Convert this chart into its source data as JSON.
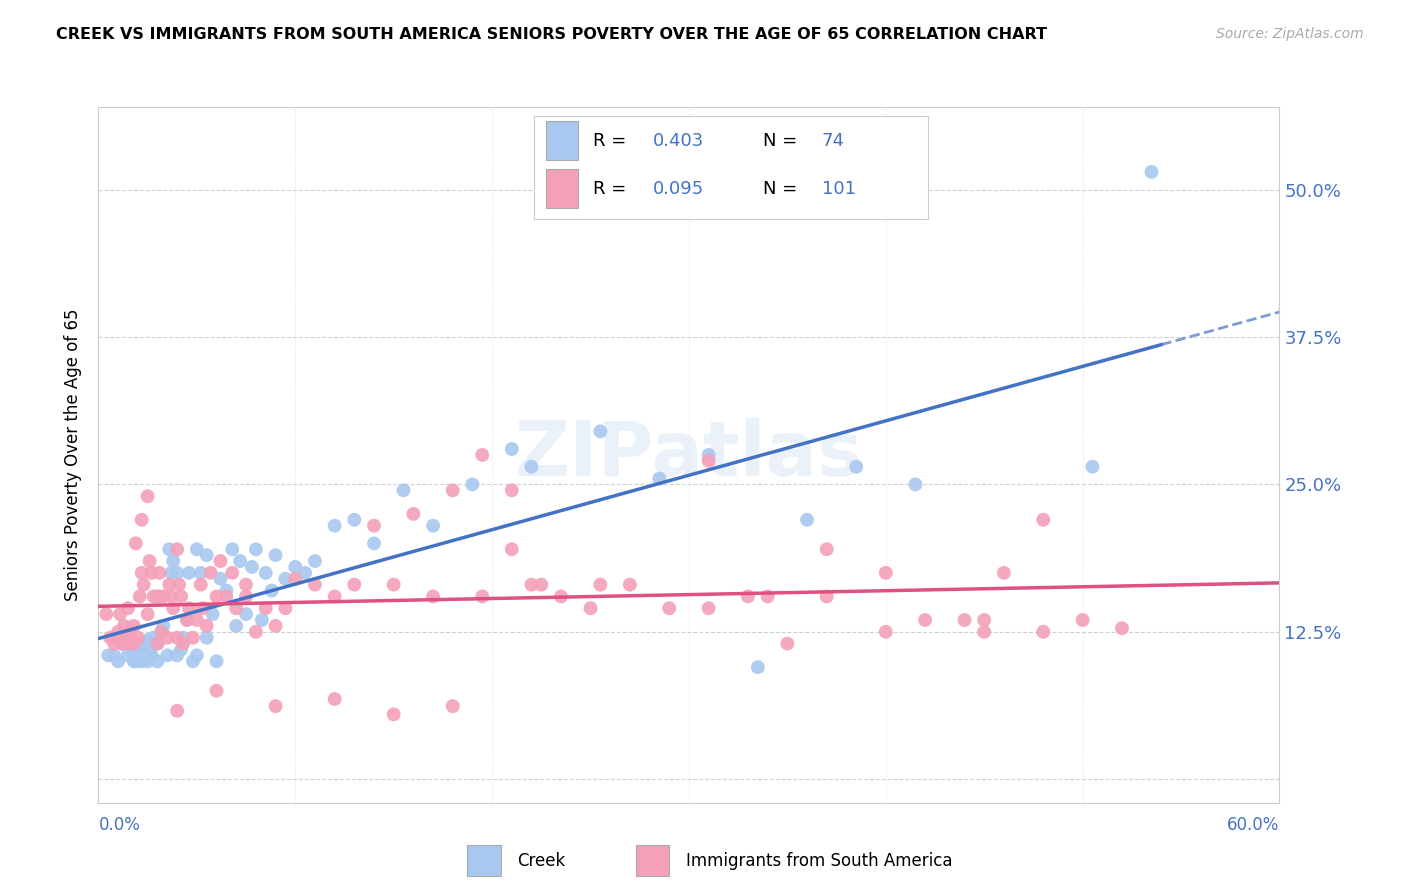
{
  "title": "CREEK VS IMMIGRANTS FROM SOUTH AMERICA SENIORS POVERTY OVER THE AGE OF 65 CORRELATION CHART",
  "source": "Source: ZipAtlas.com",
  "ylabel": "Seniors Poverty Over the Age of 65",
  "xlim": [
    0.0,
    0.6
  ],
  "ylim": [
    -0.02,
    0.57
  ],
  "creek_R": 0.403,
  "creek_N": 74,
  "immigrants_R": 0.095,
  "immigrants_N": 101,
  "creek_color": "#a8c8f0",
  "immigrants_color": "#f4a0b8",
  "creek_line_color": "#4472c4",
  "immigrants_line_color": "#e05080",
  "background_color": "#ffffff",
  "grid_color": "#cccccc",
  "creek_x": [
    0.005,
    0.008,
    0.01,
    0.012,
    0.015,
    0.015,
    0.018,
    0.018,
    0.019,
    0.02,
    0.022,
    0.022,
    0.023,
    0.025,
    0.025,
    0.026,
    0.027,
    0.028,
    0.03,
    0.03,
    0.031,
    0.032,
    0.033,
    0.035,
    0.036,
    0.037,
    0.038,
    0.04,
    0.04,
    0.042,
    0.043,
    0.045,
    0.046,
    0.048,
    0.05,
    0.05,
    0.052,
    0.055,
    0.055,
    0.058,
    0.06,
    0.062,
    0.065,
    0.068,
    0.07,
    0.072,
    0.075,
    0.078,
    0.08,
    0.083,
    0.085,
    0.088,
    0.09,
    0.095,
    0.1,
    0.105,
    0.11,
    0.12,
    0.13,
    0.14,
    0.155,
    0.17,
    0.19,
    0.21,
    0.22,
    0.255,
    0.285,
    0.31,
    0.335,
    0.36,
    0.385,
    0.415,
    0.505,
    0.535
  ],
  "creek_y": [
    0.105,
    0.105,
    0.1,
    0.115,
    0.105,
    0.12,
    0.1,
    0.11,
    0.1,
    0.108,
    0.1,
    0.112,
    0.115,
    0.1,
    0.118,
    0.11,
    0.105,
    0.12,
    0.1,
    0.115,
    0.155,
    0.125,
    0.13,
    0.105,
    0.195,
    0.175,
    0.185,
    0.105,
    0.175,
    0.11,
    0.12,
    0.135,
    0.175,
    0.1,
    0.105,
    0.195,
    0.175,
    0.12,
    0.19,
    0.14,
    0.1,
    0.17,
    0.16,
    0.195,
    0.13,
    0.185,
    0.14,
    0.18,
    0.195,
    0.135,
    0.175,
    0.16,
    0.19,
    0.17,
    0.18,
    0.175,
    0.185,
    0.215,
    0.22,
    0.2,
    0.245,
    0.215,
    0.25,
    0.28,
    0.265,
    0.295,
    0.255,
    0.275,
    0.095,
    0.22,
    0.265,
    0.25,
    0.265,
    0.515
  ],
  "immigrants_x": [
    0.004,
    0.006,
    0.008,
    0.01,
    0.011,
    0.012,
    0.013,
    0.014,
    0.015,
    0.015,
    0.016,
    0.018,
    0.018,
    0.019,
    0.02,
    0.021,
    0.022,
    0.022,
    0.023,
    0.025,
    0.025,
    0.026,
    0.027,
    0.028,
    0.03,
    0.03,
    0.031,
    0.032,
    0.033,
    0.035,
    0.036,
    0.037,
    0.038,
    0.04,
    0.04,
    0.041,
    0.042,
    0.043,
    0.045,
    0.046,
    0.048,
    0.05,
    0.052,
    0.053,
    0.055,
    0.057,
    0.06,
    0.062,
    0.065,
    0.068,
    0.07,
    0.075,
    0.08,
    0.085,
    0.09,
    0.095,
    0.1,
    0.11,
    0.12,
    0.13,
    0.14,
    0.15,
    0.16,
    0.17,
    0.18,
    0.195,
    0.21,
    0.22,
    0.235,
    0.255,
    0.27,
    0.29,
    0.31,
    0.33,
    0.35,
    0.37,
    0.4,
    0.42,
    0.45,
    0.48,
    0.31,
    0.34,
    0.37,
    0.4,
    0.195,
    0.21,
    0.225,
    0.25,
    0.44,
    0.46,
    0.04,
    0.06,
    0.09,
    0.12,
    0.15,
    0.18,
    0.45,
    0.48,
    0.5,
    0.52,
    0.075
  ],
  "immigrants_y": [
    0.14,
    0.12,
    0.115,
    0.125,
    0.14,
    0.115,
    0.13,
    0.118,
    0.115,
    0.145,
    0.125,
    0.13,
    0.115,
    0.2,
    0.12,
    0.155,
    0.175,
    0.22,
    0.165,
    0.14,
    0.24,
    0.185,
    0.175,
    0.155,
    0.115,
    0.155,
    0.175,
    0.125,
    0.155,
    0.12,
    0.165,
    0.155,
    0.145,
    0.12,
    0.195,
    0.165,
    0.155,
    0.115,
    0.135,
    0.145,
    0.12,
    0.135,
    0.165,
    0.145,
    0.13,
    0.175,
    0.155,
    0.185,
    0.155,
    0.175,
    0.145,
    0.155,
    0.125,
    0.145,
    0.13,
    0.145,
    0.17,
    0.165,
    0.155,
    0.165,
    0.215,
    0.165,
    0.225,
    0.155,
    0.245,
    0.155,
    0.245,
    0.165,
    0.155,
    0.165,
    0.165,
    0.145,
    0.145,
    0.155,
    0.115,
    0.195,
    0.125,
    0.135,
    0.125,
    0.22,
    0.27,
    0.155,
    0.155,
    0.175,
    0.275,
    0.195,
    0.165,
    0.145,
    0.135,
    0.175,
    0.058,
    0.075,
    0.062,
    0.068,
    0.055,
    0.062,
    0.135,
    0.125,
    0.135,
    0.128,
    0.165
  ]
}
